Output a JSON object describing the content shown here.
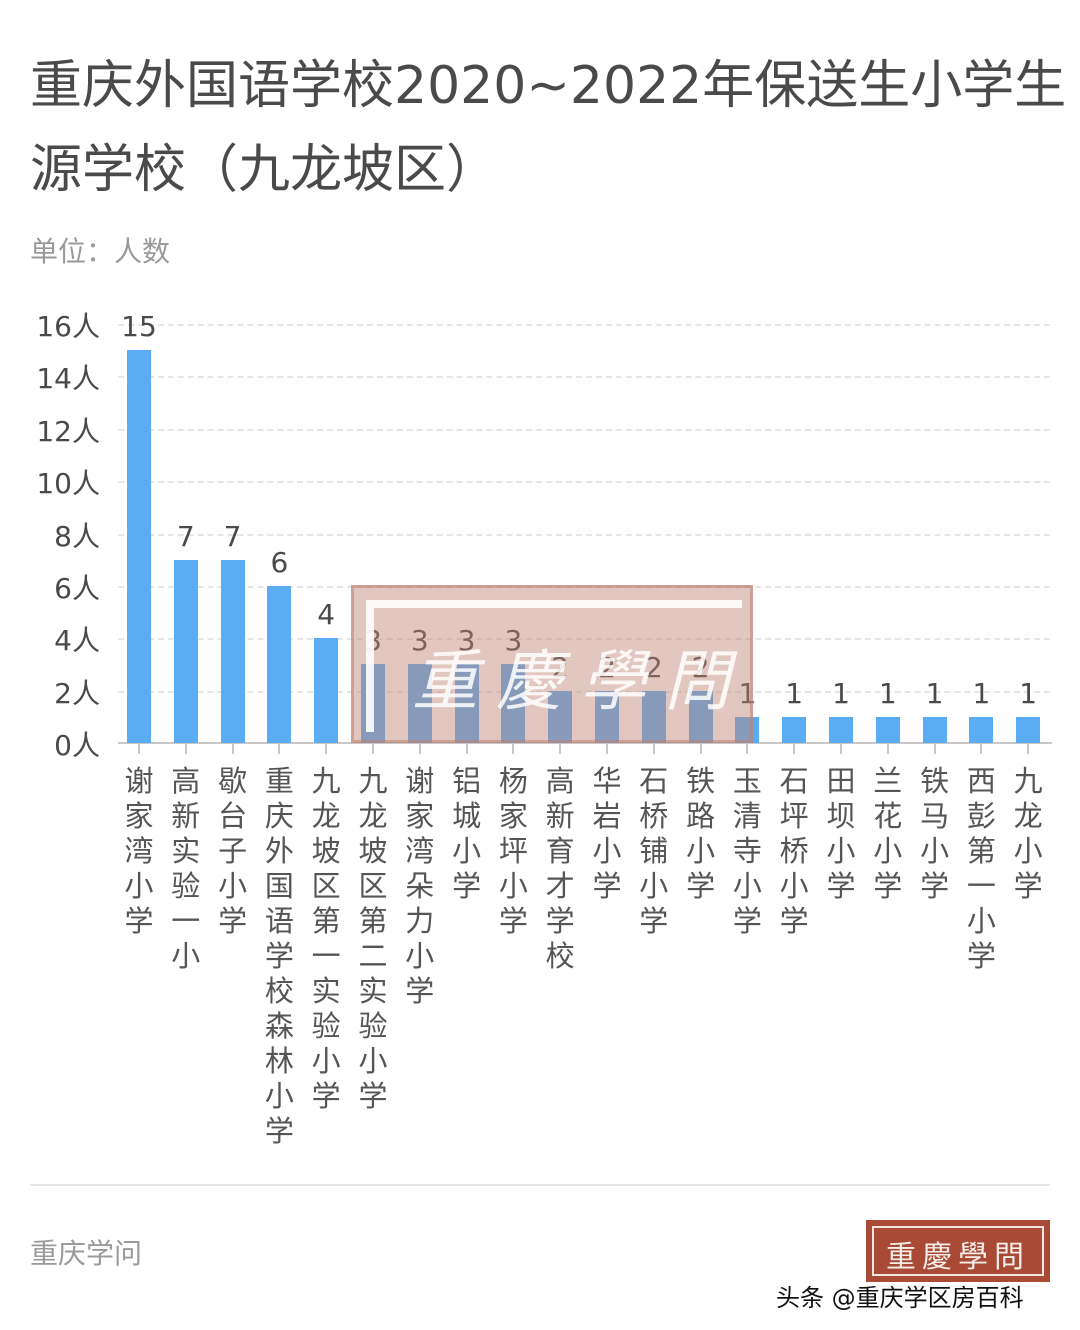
{
  "header": {
    "title": "重庆外国语学校2020~2022年保送生小学生源学校（九龙坡区）",
    "unit_label": "单位：人数"
  },
  "footer": {
    "source": "重庆学问",
    "logo_text": "重慶學問",
    "credit": "头条 @重庆学区房百科"
  },
  "watermark": {
    "text": "重慶學問"
  },
  "colors": {
    "bar": "#5aadf2",
    "logo_bg": "#a84a35",
    "text": "#4a4a4a",
    "muted": "#9a9a9a"
  },
  "chart_data": {
    "type": "bar",
    "title": "重庆外国语学校2020~2022年保送生小学生源学校（九龙坡区）",
    "xlabel": "",
    "ylabel": "单位：人数",
    "ylim": [
      0,
      16
    ],
    "yticks": [
      "0人",
      "2人",
      "4人",
      "6人",
      "8人",
      "10人",
      "12人",
      "14人",
      "16人"
    ],
    "grid": true,
    "legend": null,
    "categories": [
      "谢家湾小学",
      "高新实验一小",
      "歇台子小学",
      "重庆外国语学校森林小学",
      "九龙坡区第一实验小学",
      "九龙坡区第二实验小学",
      "谢家湾朵力小学",
      "铝城小学",
      "杨家坪小学",
      "高新育才学校",
      "华岩小学",
      "石桥铺小学",
      "铁路小学",
      "玉清寺小学",
      "石坪桥小学",
      "田坝小学",
      "兰花小学",
      "铁马小学",
      "西彭第一小学",
      "九龙小学"
    ],
    "values": [
      15,
      7,
      7,
      6,
      4,
      3,
      3,
      3,
      3,
      2,
      2,
      2,
      2,
      1,
      1,
      1,
      1,
      1,
      1,
      1
    ],
    "value_labels": [
      "15",
      "7",
      "7",
      "6",
      "4",
      "3",
      "3",
      "3",
      "3",
      "2",
      "2",
      "2",
      "2",
      "1",
      "1",
      "1",
      "1",
      "1",
      "1",
      "1"
    ]
  }
}
